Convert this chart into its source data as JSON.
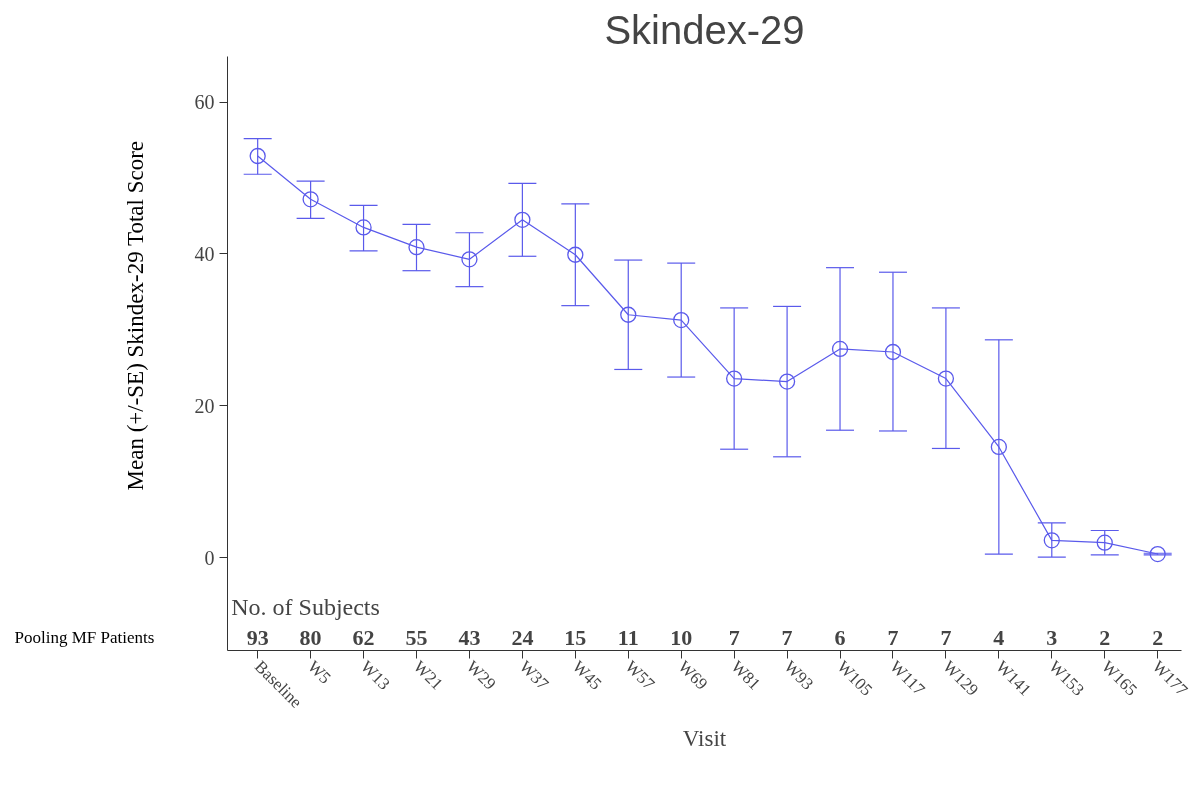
{
  "chart_data": {
    "type": "line",
    "title": "Skindex-29",
    "xlabel": "Visit",
    "ylabel": "Mean (+/-SE) Skindex-29 Total Score",
    "categories": [
      "Baseline",
      "W5",
      "W13",
      "W21",
      "W29",
      "W37",
      "W45",
      "W57",
      "W69",
      "W81",
      "W93",
      "W105",
      "W117",
      "W129",
      "W141",
      "W153",
      "W165",
      "W177"
    ],
    "series": [
      {
        "color": "#5a5aeb",
        "values": [
          52.9,
          47.2,
          43.5,
          40.9,
          39.3,
          44.5,
          39.9,
          32.0,
          31.3,
          23.6,
          23.2,
          27.5,
          27.1,
          23.6,
          14.6,
          2.3,
          2.0,
          0.5
        ],
        "errors": [
          [
            50.5,
            55.2
          ],
          [
            44.7,
            49.6
          ],
          [
            40.4,
            46.4
          ],
          [
            37.8,
            43.9
          ],
          [
            35.7,
            42.8
          ],
          [
            39.7,
            49.3
          ],
          [
            33.2,
            46.6
          ],
          [
            24.8,
            39.2
          ],
          [
            23.8,
            38.8
          ],
          [
            14.3,
            32.9
          ],
          [
            13.3,
            33.1
          ],
          [
            16.8,
            38.2
          ],
          [
            16.7,
            37.6
          ],
          [
            14.4,
            32.9
          ],
          [
            0.5,
            28.7
          ],
          [
            0.1,
            4.6
          ],
          [
            0.4,
            3.6
          ],
          [
            0.4,
            0.6
          ]
        ]
      }
    ],
    "ylim": [
      -12.2,
      66
    ],
    "yticks": [
      0,
      20,
      40,
      60
    ],
    "grid": false,
    "marker": "circle",
    "line_style": "solid",
    "annotations": [
      "No. of Subjects",
      "Pooling MF Patients",
      "93",
      "80",
      "62",
      "55",
      "43",
      "24",
      "15",
      "11",
      "10",
      "7",
      "7",
      "6",
      "7",
      "7",
      "4",
      "3",
      "2",
      "2"
    ]
  }
}
